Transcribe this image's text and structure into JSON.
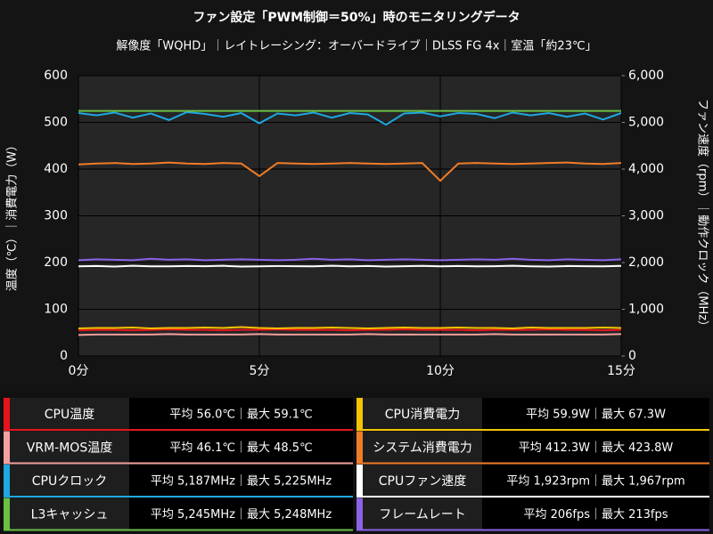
{
  "chart_data": {
    "type": "line",
    "title": "ファン設定「PWM制御＝50%」時のモニタリングデータ",
    "subtitle": "解像度「WQHD」｜レイトレーシング：オーバードライブ｜DLSS FG 4x｜室温「約23℃」",
    "ylabel": "温度（℃）｜消費電力（W）",
    "y2label": "ファン速度（rpm）｜動作クロック（MHz）",
    "grid": true,
    "xlim": [
      0,
      15
    ],
    "xticks": [
      {
        "value": 0,
        "label": "0分"
      },
      {
        "value": 5,
        "label": "5分"
      },
      {
        "value": 10,
        "label": "10分"
      },
      {
        "value": 15,
        "label": "15分"
      }
    ],
    "ylim": [
      0,
      600
    ],
    "yticks": [
      0,
      100,
      200,
      300,
      400,
      500,
      600
    ],
    "y2lim": [
      0,
      6000
    ],
    "y2ticks": [
      0,
      {
        "value": 1000,
        "label": "1,000"
      },
      {
        "value": 2000,
        "label": "2,000"
      },
      {
        "value": 3000,
        "label": "3,000"
      },
      {
        "value": 4000,
        "label": "4,000"
      },
      {
        "value": 5000,
        "label": "5,000"
      },
      {
        "value": 6000,
        "label": "6,000"
      }
    ],
    "x": [
      0,
      0.5,
      1,
      1.5,
      2,
      2.5,
      3,
      3.5,
      4,
      4.5,
      5,
      5.5,
      6,
      6.5,
      7,
      7.5,
      8,
      8.5,
      9,
      9.5,
      10,
      10.5,
      11,
      11.5,
      12,
      12.5,
      13,
      13.5,
      14,
      14.5,
      15
    ],
    "series": [
      {
        "name": "CPU温度",
        "summary": "平均 56.0℃｜最大 59.1℃",
        "color": "#e8141c",
        "axis": "y",
        "values": [
          55,
          56,
          56,
          55,
          56,
          57,
          56,
          56,
          55,
          56,
          56,
          57,
          56,
          56,
          56,
          55,
          56,
          56,
          57,
          56,
          56,
          56,
          55,
          56,
          56,
          56,
          57,
          56,
          56,
          55,
          56
        ]
      },
      {
        "name": "VRM-MOS温度",
        "summary": "平均 46.1℃｜最大 48.5℃",
        "color": "#f4a0a0",
        "axis": "y",
        "values": [
          45,
          46,
          46,
          46,
          46,
          47,
          46,
          46,
          46,
          46,
          47,
          46,
          46,
          46,
          46,
          46,
          47,
          46,
          46,
          46,
          46,
          46,
          46,
          47,
          46,
          46,
          46,
          46,
          46,
          46,
          47
        ]
      },
      {
        "name": "CPUクロック",
        "summary": "平均 5,187MHz｜最大 5,225MHz",
        "color": "#1ea7e1",
        "axis": "y2",
        "values": [
          5200,
          5150,
          5210,
          5100,
          5190,
          5050,
          5220,
          5180,
          5120,
          5200,
          4980,
          5190,
          5150,
          5210,
          5100,
          5200,
          5170,
          4950,
          5190,
          5210,
          5130,
          5200,
          5180,
          5090,
          5210,
          5150,
          5200,
          5120,
          5190,
          5060,
          5200
        ]
      },
      {
        "name": "L3キャッシュ",
        "summary": "平均 5,245MHz｜最大 5,248MHz",
        "color": "#6abf45",
        "axis": "y2",
        "values": [
          5245,
          5245,
          5245,
          5245,
          5245,
          5245,
          5245,
          5245,
          5245,
          5245,
          5245,
          5245,
          5245,
          5245,
          5245,
          5245,
          5245,
          5245,
          5245,
          5245,
          5245,
          5245,
          5245,
          5245,
          5245,
          5245,
          5245,
          5245,
          5245,
          5245,
          5245
        ]
      },
      {
        "name": "CPU消費電力",
        "summary": "平均 59.9W｜最大 67.3W",
        "color": "#f5c400",
        "axis": "y",
        "values": [
          59,
          60,
          60,
          61,
          59,
          60,
          60,
          61,
          60,
          62,
          60,
          59,
          60,
          60,
          61,
          60,
          59,
          60,
          61,
          60,
          60,
          61,
          60,
          60,
          59,
          61,
          60,
          60,
          60,
          61,
          60
        ]
      },
      {
        "name": "システム消費電力",
        "summary": "平均 412.3W｜最大 423.8W",
        "color": "#f07c28",
        "axis": "y",
        "values": [
          410,
          412,
          413,
          411,
          412,
          414,
          412,
          411,
          413,
          412,
          385,
          413,
          412,
          411,
          412,
          413,
          412,
          411,
          412,
          413,
          375,
          412,
          413,
          412,
          411,
          412,
          413,
          414,
          412,
          411,
          413
        ]
      },
      {
        "name": "CPUファン速度",
        "summary": "平均 1,923rpm｜最大 1,967rpm",
        "color": "#ffffff",
        "axis": "y2",
        "values": [
          1920,
          1925,
          1915,
          1930,
          1920,
          1918,
          1925,
          1922,
          1930,
          1915,
          1920,
          1925,
          1922,
          1918,
          1930,
          1920,
          1925,
          1915,
          1922,
          1928,
          1920,
          1925,
          1918,
          1922,
          1930,
          1920,
          1915,
          1925,
          1922,
          1920,
          1928
        ]
      },
      {
        "name": "フレームレート",
        "summary": "平均 206fps｜最大 213fps",
        "color": "#8a63e6",
        "axis": "y",
        "values": [
          205,
          207,
          206,
          205,
          208,
          206,
          207,
          205,
          206,
          207,
          206,
          205,
          206,
          208,
          206,
          207,
          205,
          206,
          207,
          206,
          205,
          206,
          207,
          206,
          208,
          206,
          205,
          207,
          206,
          205,
          207
        ]
      }
    ]
  }
}
